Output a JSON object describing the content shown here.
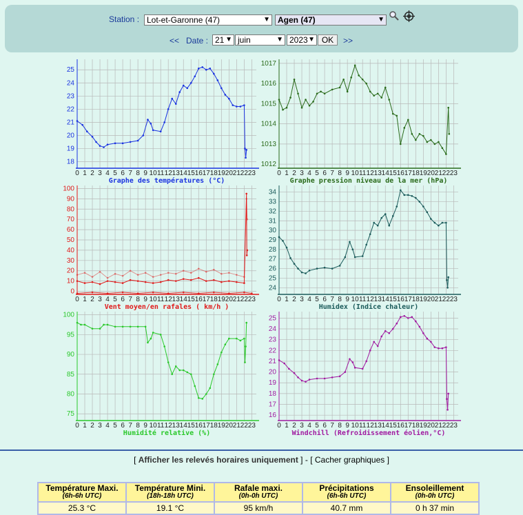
{
  "header": {
    "station_label": "Station :",
    "department": "Lot-et-Garonne (47)",
    "station": "Agen (47)",
    "date_prev": "<<",
    "date_label": "Date :",
    "day": "21",
    "month": "juin",
    "year": "2023",
    "ok_label": "OK",
    "date_next": ">>",
    "icons": [
      "magnifier-icon",
      "crosshair-icon"
    ]
  },
  "hour_labels": [
    "0",
    "1",
    "2",
    "3",
    "4",
    "5",
    "6",
    "7",
    "8",
    "9",
    "10",
    "11",
    "12",
    "13",
    "14",
    "15",
    "16",
    "17",
    "18",
    "19",
    "20",
    "21",
    "22",
    "23"
  ],
  "charts": [
    {
      "key": "temp",
      "title": "Graphe des températures (°C)",
      "color": "#1a32e0",
      "ylim": [
        17.5,
        25.8
      ],
      "yticks": [
        18,
        19,
        20,
        21,
        22,
        23,
        24,
        25
      ],
      "series": [
        [
          0,
          21.1
        ],
        [
          0.7,
          20.8
        ],
        [
          1.3,
          20.3
        ],
        [
          2,
          19.9
        ],
        [
          2.5,
          19.5
        ],
        [
          3,
          19.2
        ],
        [
          3.5,
          19.1
        ],
        [
          4,
          19.3
        ],
        [
          5,
          19.4
        ],
        [
          6,
          19.4
        ],
        [
          7,
          19.5
        ],
        [
          8,
          19.6
        ],
        [
          8.7,
          20
        ],
        [
          9.3,
          21.2
        ],
        [
          9.7,
          20.9
        ],
        [
          10,
          20.4
        ],
        [
          11,
          20.3
        ],
        [
          11.5,
          21
        ],
        [
          12,
          22
        ],
        [
          12.5,
          22.8
        ],
        [
          13,
          22.4
        ],
        [
          13.5,
          23.3
        ],
        [
          14,
          23.8
        ],
        [
          14.5,
          23.6
        ],
        [
          15,
          24
        ],
        [
          15.5,
          24.5
        ],
        [
          16,
          25.1
        ],
        [
          16.5,
          25.2
        ],
        [
          17,
          25.0
        ],
        [
          17.5,
          25.1
        ],
        [
          18,
          24.7
        ],
        [
          18.5,
          24.2
        ],
        [
          19,
          23.6
        ],
        [
          19.5,
          23.1
        ],
        [
          20,
          22.8
        ],
        [
          20.5,
          22.3
        ],
        [
          21,
          22.2
        ],
        [
          21.5,
          22.2
        ],
        [
          22,
          22.3
        ],
        [
          22.1,
          19.0
        ],
        [
          22.2,
          18.3
        ],
        [
          22.3,
          18.9
        ]
      ]
    },
    {
      "key": "pressure",
      "title": "Graphe pression niveau de la mer (hPa)",
      "color": "#2a6a1a",
      "ylim": [
        1011.8,
        1017.2
      ],
      "yticks": [
        1012,
        1013,
        1014,
        1015,
        1016,
        1017
      ],
      "series": [
        [
          0,
          1015.2
        ],
        [
          0.5,
          1014.7
        ],
        [
          1,
          1014.8
        ],
        [
          1.5,
          1015.3
        ],
        [
          2,
          1016.2
        ],
        [
          2.5,
          1015.5
        ],
        [
          3,
          1014.8
        ],
        [
          3.5,
          1015.2
        ],
        [
          4,
          1014.9
        ],
        [
          4.5,
          1015.1
        ],
        [
          5,
          1015.5
        ],
        [
          5.5,
          1015.6
        ],
        [
          6,
          1015.5
        ],
        [
          7,
          1015.7
        ],
        [
          8,
          1015.8
        ],
        [
          8.5,
          1016.2
        ],
        [
          9,
          1015.6
        ],
        [
          9.5,
          1016.3
        ],
        [
          10,
          1016.9
        ],
        [
          10.5,
          1016.4
        ],
        [
          11,
          1016.2
        ],
        [
          11.5,
          1016
        ],
        [
          12,
          1015.6
        ],
        [
          12.5,
          1015.4
        ],
        [
          13,
          1015.5
        ],
        [
          13.5,
          1015.3
        ],
        [
          14,
          1015.8
        ],
        [
          14.5,
          1015.2
        ],
        [
          15,
          1014.5
        ],
        [
          15.5,
          1014.4
        ],
        [
          16,
          1013.0
        ],
        [
          16.5,
          1013.8
        ],
        [
          17,
          1014.2
        ],
        [
          17.5,
          1013.5
        ],
        [
          18,
          1013.2
        ],
        [
          18.5,
          1013.5
        ],
        [
          19,
          1013.4
        ],
        [
          19.5,
          1013.1
        ],
        [
          20,
          1013.2
        ],
        [
          20.5,
          1013.0
        ],
        [
          21,
          1013.1
        ],
        [
          21.5,
          1012.8
        ],
        [
          22,
          1012.5
        ],
        [
          22.3,
          1014.8
        ],
        [
          22.4,
          1013.5
        ]
      ]
    },
    {
      "key": "wind",
      "title": "Vent moyen/en rafales ( km/h )",
      "color": "#e01a1a",
      "ylim": [
        -3,
        103
      ],
      "yticks": [
        0,
        10,
        20,
        30,
        40,
        50,
        60,
        70,
        80,
        90,
        100
      ],
      "series": [
        [
          0,
          10
        ],
        [
          1,
          8
        ],
        [
          2,
          9
        ],
        [
          3,
          7
        ],
        [
          4,
          10
        ],
        [
          5,
          9
        ],
        [
          6,
          8
        ],
        [
          7,
          11
        ],
        [
          8,
          10
        ],
        [
          9,
          9
        ],
        [
          10,
          8
        ],
        [
          11,
          9
        ],
        [
          12,
          11
        ],
        [
          13,
          10
        ],
        [
          14,
          12
        ],
        [
          15,
          11
        ],
        [
          16,
          13
        ],
        [
          17,
          10
        ],
        [
          18,
          11
        ],
        [
          19,
          9
        ],
        [
          20,
          10
        ],
        [
          21,
          9
        ],
        [
          22,
          8
        ],
        [
          22.3,
          95
        ],
        [
          22.35,
          35
        ],
        [
          22.4,
          40
        ]
      ],
      "series2": [
        [
          0,
          16
        ],
        [
          1,
          18
        ],
        [
          2,
          14
        ],
        [
          3,
          19
        ],
        [
          4,
          13
        ],
        [
          5,
          17
        ],
        [
          6,
          15
        ],
        [
          7,
          20
        ],
        [
          8,
          16
        ],
        [
          9,
          18
        ],
        [
          10,
          14
        ],
        [
          11,
          16
        ],
        [
          12,
          18
        ],
        [
          13,
          17
        ],
        [
          14,
          20
        ],
        [
          15,
          18
        ],
        [
          16,
          22
        ],
        [
          17,
          19
        ],
        [
          18,
          21
        ],
        [
          19,
          17
        ],
        [
          20,
          18
        ],
        [
          21,
          16
        ],
        [
          22,
          14
        ],
        [
          22.3,
          90
        ],
        [
          22.4,
          70
        ]
      ],
      "series3": [
        [
          0,
          -2
        ],
        [
          2,
          -1
        ],
        [
          4,
          -2
        ],
        [
          6,
          -1
        ],
        [
          8,
          -2
        ],
        [
          10,
          -1
        ],
        [
          12,
          -2
        ],
        [
          14,
          -1
        ],
        [
          16,
          -2
        ],
        [
          18,
          -1
        ],
        [
          20,
          -2
        ],
        [
          22,
          -1
        ],
        [
          23,
          -2
        ]
      ]
    },
    {
      "key": "humidex",
      "title": "Humidex (Indice chaleur)",
      "color": "#1a5a5a",
      "ylim": [
        23.3,
        34.7
      ],
      "yticks": [
        24,
        25,
        26,
        27,
        28,
        29,
        30,
        31,
        32,
        33,
        34
      ],
      "series": [
        [
          0,
          29.3
        ],
        [
          0.5,
          28.9
        ],
        [
          1,
          28.2
        ],
        [
          1.5,
          27.1
        ],
        [
          2,
          26.5
        ],
        [
          2.5,
          26.0
        ],
        [
          3,
          25.6
        ],
        [
          3.5,
          25.5
        ],
        [
          4,
          25.8
        ],
        [
          5,
          26.0
        ],
        [
          6,
          26.1
        ],
        [
          7,
          26.0
        ],
        [
          8,
          26.3
        ],
        [
          8.7,
          27.2
        ],
        [
          9.3,
          28.8
        ],
        [
          9.7,
          28.0
        ],
        [
          10,
          27.2
        ],
        [
          11,
          27.3
        ],
        [
          11.5,
          28.5
        ],
        [
          12,
          29.6
        ],
        [
          12.5,
          30.8
        ],
        [
          13,
          30.5
        ],
        [
          13.5,
          31.3
        ],
        [
          14,
          31.7
        ],
        [
          14.5,
          30.5
        ],
        [
          15,
          31.5
        ],
        [
          15.5,
          32.5
        ],
        [
          16,
          34.2
        ],
        [
          16.5,
          33.7
        ],
        [
          17,
          33.7
        ],
        [
          17.5,
          33.6
        ],
        [
          18,
          33.4
        ],
        [
          18.5,
          33.0
        ],
        [
          19,
          32.5
        ],
        [
          19.5,
          31.9
        ],
        [
          20,
          31.2
        ],
        [
          20.5,
          30.8
        ],
        [
          21,
          30.5
        ],
        [
          21.5,
          30.8
        ],
        [
          22,
          30.8
        ],
        [
          22.1,
          24.8
        ],
        [
          22.2,
          24.0
        ],
        [
          22.3,
          25.1
        ]
      ]
    },
    {
      "key": "humidity",
      "title": "Humidité relative (%)",
      "color": "#2ac82a",
      "ylim": [
        73.3,
        100.8
      ],
      "yticks": [
        75,
        80,
        85,
        90,
        95,
        100
      ],
      "series": [
        [
          0,
          98
        ],
        [
          0.5,
          97.5
        ],
        [
          1,
          97.5
        ],
        [
          2,
          96.5
        ],
        [
          3,
          96.5
        ],
        [
          3.5,
          97.5
        ],
        [
          4,
          97.5
        ],
        [
          5,
          97
        ],
        [
          6,
          97
        ],
        [
          7,
          97
        ],
        [
          8,
          97
        ],
        [
          9,
          97
        ],
        [
          9.3,
          93
        ],
        [
          9.7,
          94
        ],
        [
          10,
          95.5
        ],
        [
          11,
          95
        ],
        [
          11.5,
          92
        ],
        [
          12,
          88
        ],
        [
          12.5,
          85
        ],
        [
          13,
          87
        ],
        [
          13.5,
          86
        ],
        [
          14,
          86
        ],
        [
          14.5,
          85.5
        ],
        [
          15,
          85
        ],
        [
          15.5,
          82
        ],
        [
          16,
          79
        ],
        [
          16.5,
          78.8
        ],
        [
          17,
          80
        ],
        [
          17.5,
          81.5
        ],
        [
          18,
          85
        ],
        [
          18.5,
          87.5
        ],
        [
          19,
          90.5
        ],
        [
          19.5,
          92.5
        ],
        [
          20,
          94
        ],
        [
          21,
          94
        ],
        [
          21.5,
          93.5
        ],
        [
          22,
          94
        ],
        [
          22.1,
          88
        ],
        [
          22.2,
          92
        ],
        [
          22.3,
          98
        ]
      ]
    },
    {
      "key": "windchill",
      "title": "Windchill (Refroidissement éolien,°C)",
      "color": "#a01aa0",
      "ylim": [
        15.5,
        25.6
      ],
      "yticks": [
        16,
        17,
        18,
        19,
        20,
        21,
        22,
        23,
        24,
        25
      ],
      "series": [
        [
          0,
          21.1
        ],
        [
          0.7,
          20.8
        ],
        [
          1.3,
          20.3
        ],
        [
          2,
          19.9
        ],
        [
          2.5,
          19.5
        ],
        [
          3,
          19.2
        ],
        [
          3.5,
          19.1
        ],
        [
          4,
          19.3
        ],
        [
          5,
          19.4
        ],
        [
          6,
          19.4
        ],
        [
          7,
          19.5
        ],
        [
          8,
          19.6
        ],
        [
          8.7,
          20
        ],
        [
          9.3,
          21.2
        ],
        [
          9.7,
          20.9
        ],
        [
          10,
          20.4
        ],
        [
          11,
          20.3
        ],
        [
          11.5,
          21
        ],
        [
          12,
          22
        ],
        [
          12.5,
          22.8
        ],
        [
          13,
          22.4
        ],
        [
          13.5,
          23.3
        ],
        [
          14,
          23.8
        ],
        [
          14.5,
          23.6
        ],
        [
          15,
          24
        ],
        [
          15.5,
          24.5
        ],
        [
          16,
          25.1
        ],
        [
          16.5,
          25.2
        ],
        [
          17,
          25.0
        ],
        [
          17.5,
          25.1
        ],
        [
          18,
          24.7
        ],
        [
          18.5,
          24.2
        ],
        [
          19,
          23.6
        ],
        [
          19.5,
          23.1
        ],
        [
          20,
          22.8
        ],
        [
          20.5,
          22.3
        ],
        [
          21,
          22.2
        ],
        [
          21.5,
          22.2
        ],
        [
          22,
          22.3
        ],
        [
          22.1,
          17.5
        ],
        [
          22.2,
          16.5
        ],
        [
          22.3,
          18.0
        ]
      ]
    }
  ],
  "links": {
    "open": "[ ",
    "show_hourly": "Afficher les relevés horaires uniquement",
    "close": " ]",
    "dash": " - ",
    "hide": "[ Cacher graphiques ]"
  },
  "summary": {
    "headers": [
      {
        "title": "Température Maxi.",
        "sub": "(6h-6h UTC)"
      },
      {
        "title": "Température Mini.",
        "sub": "(18h-18h UTC)"
      },
      {
        "title": "Rafale maxi.",
        "sub": "(0h-0h UTC)"
      },
      {
        "title": "Précipitations",
        "sub": "(6h-6h UTC)"
      },
      {
        "title": "Ensoleillement",
        "sub": "(0h-0h UTC)"
      }
    ],
    "values": [
      "25.3 °C",
      "19.1 °C",
      "95 km/h",
      "40.7 mm",
      "0 h 37 min"
    ]
  }
}
